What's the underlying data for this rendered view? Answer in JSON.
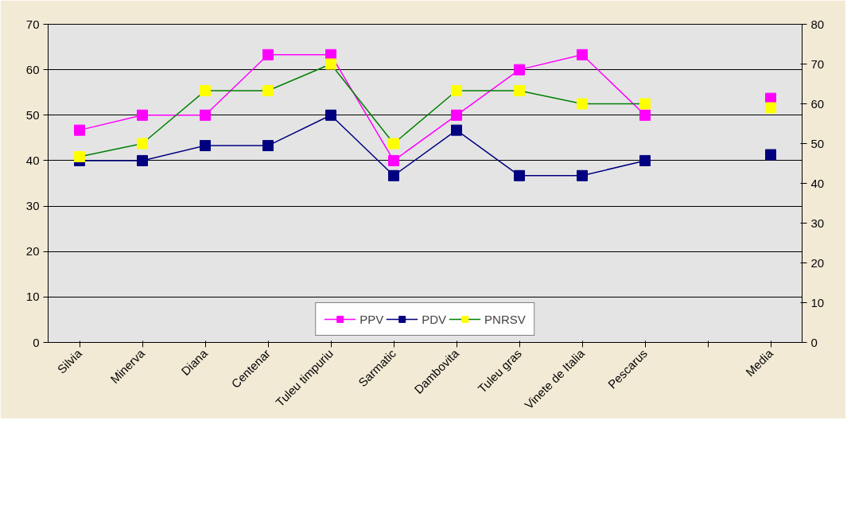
{
  "chart_data": {
    "type": "line",
    "categories": [
      "Silvia",
      "Minerva",
      "Diana",
      "Centenar",
      "Tuleu timpuriu",
      "Sarmatic",
      "Dambovita",
      "Tuleu gras",
      "Vinete de Italia",
      "Pescarus",
      null,
      "Media"
    ],
    "series": [
      {
        "name": "PPV",
        "color": "#ff00ff",
        "values": [
          46.7,
          50,
          50,
          63.3,
          63.3,
          40,
          50,
          60,
          63.3,
          50,
          null,
          53.7
        ]
      },
      {
        "name": "PDV",
        "color": "#000080",
        "values": [
          40,
          40,
          43.3,
          43.3,
          50,
          36.7,
          46.7,
          36.7,
          36.7,
          40,
          null,
          41.3
        ]
      },
      {
        "name": "PNRSV",
        "color": "#008000",
        "colors": [
          "#ffff00",
          "#ffff00",
          "#ffff00",
          "#ffff00",
          "#ffff00",
          "#ffff00",
          "#ffff00",
          "#ffff00",
          "#ffff00",
          "#ffff00",
          "#ffff00",
          "#ffff00"
        ],
        "axis": "y2",
        "values": [
          46.7,
          50,
          63.3,
          63.3,
          70,
          50,
          63.3,
          63.3,
          60,
          60,
          null,
          59
        ]
      }
    ],
    "ylim": [
      0,
      70
    ],
    "yticks": [
      0,
      10,
      20,
      30,
      40,
      50,
      60,
      70
    ],
    "y2lim": [
      0,
      80
    ],
    "y2ticks": [
      0,
      10,
      20,
      30,
      40,
      50,
      60,
      70,
      80
    ],
    "grid": "y",
    "legend": "bottom",
    "marker": "square",
    "line_style": "solid"
  }
}
